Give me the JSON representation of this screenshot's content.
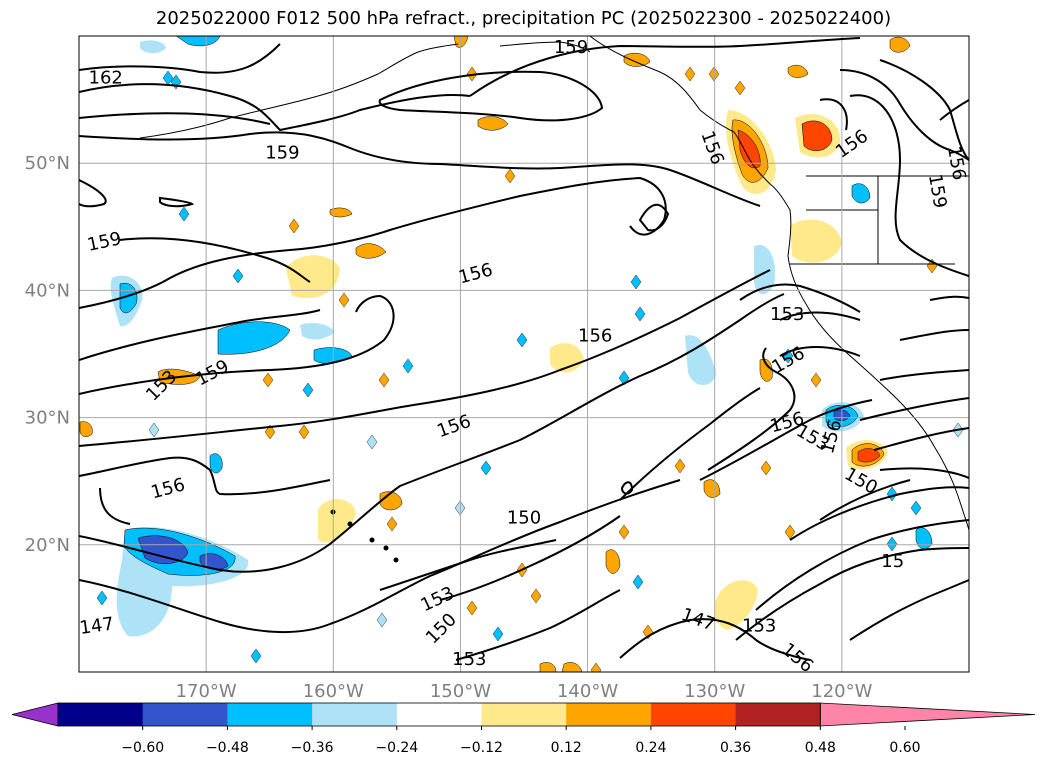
{
  "title": "2025022000 F012 500 hPa refract., precipitation PC (2025022300 - 2025022400)",
  "chart_data": {
    "type": "contour",
    "variable_contour": "500 hPa refractivity",
    "variable_fill": "precipitation PC",
    "lon_range": [
      -180,
      -110
    ],
    "lat_range": [
      10,
      60
    ],
    "grid": true,
    "x_ticks": [
      "170°W",
      "160°W",
      "150°W",
      "140°W",
      "130°W",
      "120°W"
    ],
    "x_tick_values": [
      -170,
      -160,
      -150,
      -140,
      -130,
      -120
    ],
    "y_ticks": [
      "50°N",
      "40°N",
      "30°N",
      "20°N"
    ],
    "y_tick_values": [
      50,
      40,
      30,
      20
    ],
    "colorbar": {
      "extend": "both",
      "levels": [
        -0.6,
        -0.48,
        -0.36,
        -0.24,
        -0.12,
        0.12,
        0.24,
        0.36,
        0.48,
        0.6
      ],
      "labels": [
        "−0.60",
        "−0.48",
        "−0.36",
        "−0.24",
        "−0.12",
        "0.12",
        "0.24",
        "0.36",
        "0.48",
        "0.60"
      ],
      "colors": [
        "#9932cc",
        "#00008b",
        "#3355cc",
        "#00bfff",
        "#aee2f7",
        "#ffffff",
        "#ffe98a",
        "#ffa500",
        "#ff4500",
        "#b22222",
        "#ff85a8"
      ]
    },
    "contour_labels": [
      {
        "text": "162",
        "lon": -177.9,
        "lat": 56.7,
        "rot": 0
      },
      {
        "text": "159",
        "lon": -141.3,
        "lat": 59.1,
        "rot": 0
      },
      {
        "text": "159",
        "lon": -164,
        "lat": 50.8,
        "rot": 0
      },
      {
        "text": "159",
        "lon": -178,
        "lat": 43.8,
        "rot": -12
      },
      {
        "text": "156",
        "lon": -148.8,
        "lat": 41.3,
        "rot": -15
      },
      {
        "text": "156",
        "lon": -139.4,
        "lat": 36.4,
        "rot": 0
      },
      {
        "text": "159",
        "lon": -169.5,
        "lat": 33.5,
        "rot": -28
      },
      {
        "text": "153",
        "lon": -173.5,
        "lat": 32.5,
        "rot": -45
      },
      {
        "text": "156",
        "lon": -150.5,
        "lat": 29.3,
        "rot": -20
      },
      {
        "text": "156",
        "lon": -173,
        "lat": 24.4,
        "rot": -15
      },
      {
        "text": "150",
        "lon": -145,
        "lat": 22.1,
        "rot": 0
      },
      {
        "text": "153",
        "lon": -151.8,
        "lat": 15.7,
        "rot": -25
      },
      {
        "text": "150",
        "lon": -151.5,
        "lat": 13.4,
        "rot": -45
      },
      {
        "text": "153",
        "lon": -149.3,
        "lat": 11.0,
        "rot": 0
      },
      {
        "text": "147",
        "lon": -178.6,
        "lat": 13.6,
        "rot": -8
      },
      {
        "text": "147",
        "lon": -131.3,
        "lat": 14.1,
        "rot": 20
      },
      {
        "text": "153",
        "lon": -126.5,
        "lat": 13.6,
        "rot": 0
      },
      {
        "text": "156",
        "lon": -123.5,
        "lat": 11.1,
        "rot": 40
      },
      {
        "text": "153",
        "lon": -124.3,
        "lat": 38.1,
        "rot": 0
      },
      {
        "text": "156",
        "lon": -124.2,
        "lat": 34.5,
        "rot": -30
      },
      {
        "text": "156",
        "lon": -124.3,
        "lat": 29.6,
        "rot": -15
      },
      {
        "text": "153",
        "lon": -122.3,
        "lat": 28.4,
        "rot": 30
      },
      {
        "text": "156",
        "lon": -120.8,
        "lat": 28.5,
        "rot": -75
      },
      {
        "text": "150",
        "lon": -118.5,
        "lat": 25.0,
        "rot": 30
      },
      {
        "text": "15",
        "lon": -116,
        "lat": 18.7,
        "rot": 0
      },
      {
        "text": "156",
        "lon": -119.2,
        "lat": 51.5,
        "rot": -35
      },
      {
        "text": "156",
        "lon": -111,
        "lat": 50.0,
        "rot": 80
      },
      {
        "text": "159",
        "lon": -112.5,
        "lat": 47.8,
        "rot": 80
      },
      {
        "text": "156",
        "lon": -130.2,
        "lat": 51.2,
        "rot": 70
      }
    ]
  }
}
